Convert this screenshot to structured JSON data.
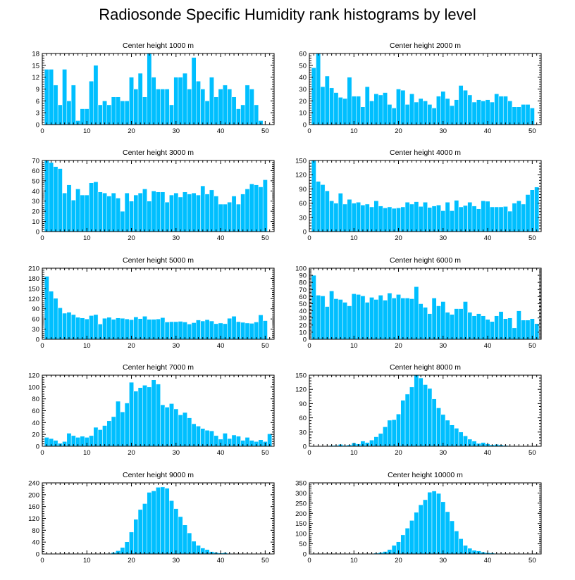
{
  "title": "Radiosonde Specific Humidity rank histograms by level",
  "chart_data": [
    {
      "type": "bar",
      "title": "Center height 1000 m",
      "xlim": [
        0,
        52
      ],
      "ylim": [
        0,
        18
      ],
      "xticks": [
        0,
        10,
        20,
        30,
        40,
        50
      ],
      "yticks": [
        0,
        3,
        6,
        9,
        12,
        15,
        18
      ],
      "values": [
        14,
        14,
        10,
        5,
        14,
        6,
        10,
        1,
        4,
        4,
        11,
        15,
        5,
        6,
        5,
        7,
        7,
        6,
        6,
        12,
        9,
        13,
        7,
        18,
        12,
        9,
        9,
        9,
        5,
        12,
        12,
        13,
        9,
        17,
        11,
        9,
        6,
        12,
        7,
        9,
        10,
        9,
        7,
        4,
        5,
        10,
        9,
        5,
        1
      ]
    },
    {
      "type": "bar",
      "title": "Center height 2000 m",
      "xlim": [
        0,
        52
      ],
      "ylim": [
        0,
        60
      ],
      "xticks": [
        0,
        10,
        20,
        30,
        40,
        50
      ],
      "yticks": [
        0,
        10,
        20,
        30,
        40,
        50,
        60
      ],
      "values": [
        48,
        60,
        32,
        41,
        31,
        27,
        23,
        22,
        40,
        24,
        24,
        15,
        32,
        20,
        26,
        25,
        27,
        17,
        14,
        30,
        29,
        17,
        26,
        19,
        22,
        20,
        17,
        14,
        24,
        28,
        22,
        16,
        21,
        33,
        29,
        25,
        19,
        21,
        20,
        21,
        19,
        26,
        24,
        24,
        20,
        15,
        15,
        17,
        17,
        14
      ]
    },
    {
      "type": "bar",
      "title": "Center height 3000 m",
      "xlim": [
        0,
        52
      ],
      "ylim": [
        0,
        70
      ],
      "xticks": [
        0,
        10,
        20,
        30,
        40,
        50
      ],
      "yticks": [
        0,
        10,
        20,
        30,
        40,
        50,
        60,
        70
      ],
      "values": [
        70,
        68,
        64,
        62,
        38,
        46,
        31,
        42,
        36,
        36,
        48,
        49,
        39,
        38,
        35,
        38,
        33,
        20,
        38,
        30,
        36,
        38,
        42,
        30,
        40,
        39,
        39,
        29,
        36,
        38,
        34,
        39,
        37,
        38,
        36,
        45,
        37,
        41,
        35,
        27,
        27,
        29,
        35,
        27,
        37,
        42,
        47,
        46,
        44,
        51
      ]
    },
    {
      "type": "bar",
      "title": "Center height 4000 m",
      "xlim": [
        0,
        52
      ],
      "ylim": [
        0,
        150
      ],
      "xticks": [
        0,
        10,
        20,
        30,
        40,
        50
      ],
      "yticks": [
        0,
        30,
        60,
        90,
        120,
        150
      ],
      "values": [
        150,
        106,
        99,
        86,
        65,
        60,
        81,
        58,
        68,
        60,
        62,
        56,
        58,
        52,
        65,
        54,
        50,
        52,
        49,
        50,
        52,
        62,
        58,
        63,
        53,
        62,
        51,
        54,
        56,
        44,
        62,
        44,
        66,
        52,
        55,
        62,
        54,
        48,
        65,
        64,
        52,
        52,
        52,
        53,
        43,
        60,
        65,
        58,
        78,
        88,
        94
      ]
    },
    {
      "type": "bar",
      "title": "Center height 5000 m",
      "xlim": [
        0,
        52
      ],
      "ylim": [
        0,
        210
      ],
      "xticks": [
        0,
        10,
        20,
        30,
        40,
        50
      ],
      "yticks": [
        0,
        30,
        60,
        90,
        120,
        150,
        180,
        210
      ],
      "values": [
        186,
        142,
        121,
        93,
        77,
        80,
        73,
        65,
        63,
        60,
        70,
        73,
        45,
        62,
        65,
        59,
        63,
        62,
        60,
        58,
        66,
        61,
        68,
        59,
        59,
        60,
        64,
        51,
        52,
        52,
        53,
        51,
        45,
        49,
        57,
        54,
        58,
        54,
        46,
        48,
        46,
        62,
        68,
        52,
        50,
        48,
        47,
        51,
        72,
        55
      ]
    },
    {
      "type": "bar",
      "title": "Center height 6000 m",
      "xlim": [
        0,
        52
      ],
      "ylim": [
        0,
        100
      ],
      "xticks": [
        0,
        10,
        20,
        30,
        40,
        50
      ],
      "yticks": [
        0,
        10,
        20,
        30,
        40,
        50,
        60,
        70,
        80,
        90,
        100
      ],
      "values": [
        90,
        62,
        61,
        46,
        68,
        57,
        56,
        52,
        47,
        64,
        63,
        61,
        52,
        59,
        56,
        62,
        55,
        65,
        58,
        63,
        58,
        58,
        57,
        74,
        50,
        45,
        36,
        58,
        47,
        53,
        38,
        35,
        43,
        43,
        53,
        38,
        33,
        36,
        33,
        28,
        25,
        33,
        39,
        29,
        30,
        16,
        40,
        27,
        27,
        29,
        22
      ]
    },
    {
      "type": "bar",
      "title": "Center height 7000 m",
      "xlim": [
        0,
        52
      ],
      "ylim": [
        0,
        120
      ],
      "xticks": [
        0,
        10,
        20,
        30,
        40,
        50
      ],
      "yticks": [
        0,
        20,
        40,
        60,
        80,
        100,
        120
      ],
      "values": [
        15,
        13,
        10,
        5,
        8,
        22,
        18,
        15,
        17,
        15,
        18,
        32,
        28,
        35,
        43,
        50,
        76,
        58,
        73,
        108,
        93,
        99,
        103,
        100,
        112,
        105,
        70,
        66,
        72,
        63,
        53,
        57,
        48,
        38,
        34,
        30,
        27,
        26,
        18,
        12,
        22,
        13,
        19,
        17,
        10,
        15,
        10,
        8,
        11,
        8,
        21
      ]
    },
    {
      "type": "bar",
      "title": "Center height 8000 m",
      "xlim": [
        0,
        52
      ],
      "ylim": [
        0,
        150
      ],
      "xticks": [
        0,
        10,
        20,
        30,
        40,
        50
      ],
      "yticks": [
        0,
        30,
        60,
        90,
        120,
        150
      ],
      "values": [
        0,
        0,
        0,
        1,
        2,
        2,
        4,
        2,
        3,
        7,
        5,
        11,
        8,
        13,
        20,
        27,
        41,
        55,
        56,
        68,
        97,
        110,
        125,
        150,
        144,
        130,
        122,
        100,
        81,
        67,
        55,
        45,
        38,
        30,
        22,
        15,
        11,
        6,
        8,
        5,
        3,
        4,
        3,
        2,
        1,
        1,
        0,
        0,
        0,
        0,
        0
      ]
    },
    {
      "type": "bar",
      "title": "Center height 9000 m",
      "xlim": [
        0,
        52
      ],
      "ylim": [
        0,
        240
      ],
      "xticks": [
        0,
        10,
        20,
        30,
        40,
        50
      ],
      "yticks": [
        0,
        40,
        80,
        120,
        160,
        200,
        240
      ],
      "values": [
        0,
        0,
        0,
        0,
        0,
        0,
        0,
        0,
        0,
        0,
        1,
        1,
        1,
        1,
        2,
        5,
        11,
        22,
        41,
        74,
        117,
        150,
        170,
        208,
        213,
        225,
        226,
        222,
        180,
        153,
        126,
        98,
        71,
        43,
        29,
        20,
        15,
        8,
        5,
        3,
        4,
        2,
        1,
        1,
        0,
        0,
        0,
        0,
        0,
        0,
        0
      ]
    },
    {
      "type": "bar",
      "title": "Center height 10000 m",
      "xlim": [
        0,
        52
      ],
      "ylim": [
        0,
        350
      ],
      "xticks": [
        0,
        10,
        20,
        30,
        40,
        50
      ],
      "yticks": [
        0,
        50,
        100,
        150,
        200,
        250,
        300,
        350
      ],
      "values": [
        0,
        0,
        0,
        0,
        0,
        0,
        0,
        0,
        0,
        1,
        1,
        1,
        1,
        2,
        4,
        7,
        12,
        22,
        42,
        60,
        94,
        127,
        165,
        205,
        242,
        267,
        304,
        310,
        298,
        257,
        208,
        163,
        113,
        75,
        42,
        28,
        18,
        15,
        9,
        6,
        5,
        3,
        2,
        1,
        1,
        0,
        0,
        0,
        0,
        0,
        0
      ]
    }
  ]
}
